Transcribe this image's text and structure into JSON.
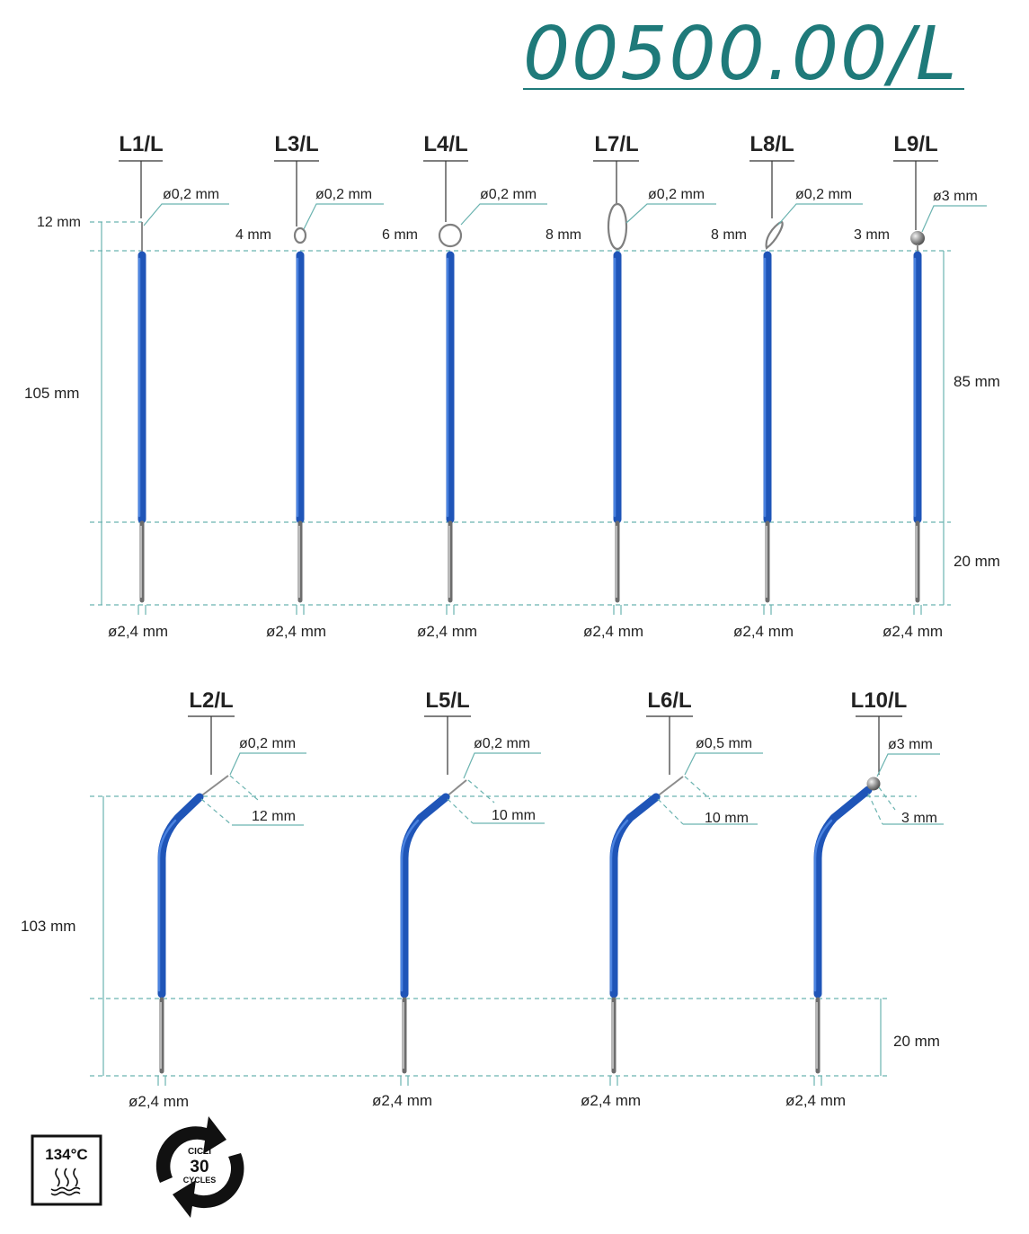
{
  "title": "00500.00/L",
  "colors": {
    "title": "#1f7a7a",
    "sleeve": "#1f55b8",
    "guide": "#6bb3b0",
    "pin": "#6d6d6d"
  },
  "straight": {
    "items": [
      {
        "code": "L1/L",
        "tip_diameter": "ø0,2 mm",
        "tip_length": "12 mm",
        "base_diameter": "ø2,4 mm",
        "tip": "needle"
      },
      {
        "code": "L3/L",
        "tip_diameter": "ø0,2 mm",
        "tip_length": "4 mm",
        "base_diameter": "ø2,4 mm",
        "tip": "loop-small"
      },
      {
        "code": "L4/L",
        "tip_diameter": "ø0,2 mm",
        "tip_length": "6 mm",
        "base_diameter": "ø2,4 mm",
        "tip": "loop-round"
      },
      {
        "code": "L7/L",
        "tip_diameter": "ø0,2 mm",
        "tip_length": "8 mm",
        "base_diameter": "ø2,4 mm",
        "tip": "loop-oval"
      },
      {
        "code": "L8/L",
        "tip_diameter": "ø0,2 mm",
        "tip_length": "8 mm",
        "base_diameter": "ø2,4 mm",
        "tip": "loop-angled"
      },
      {
        "code": "L9/L",
        "tip_diameter": "ø3 mm",
        "tip_length": "3 mm",
        "base_diameter": "ø2,4 mm",
        "tip": "ball"
      }
    ],
    "total_length": "105 mm",
    "sleeve_length": "85 mm",
    "pin_length": "20 mm"
  },
  "angled": {
    "items": [
      {
        "code": "L2/L",
        "tip_diameter": "ø0,2 mm",
        "tip_length": "12 mm",
        "base_diameter": "ø2,4 mm",
        "tip": "needle"
      },
      {
        "code": "L5/L",
        "tip_diameter": "ø0,2 mm",
        "tip_length": "10 mm",
        "base_diameter": "ø2,4 mm",
        "tip": "needle"
      },
      {
        "code": "L6/L",
        "tip_diameter": "ø0,5 mm",
        "tip_length": "10 mm",
        "base_diameter": "ø2,4 mm",
        "tip": "needle"
      },
      {
        "code": "L10/L",
        "tip_diameter": "ø3 mm",
        "tip_length": "3 mm",
        "base_diameter": "ø2,4 mm",
        "tip": "ball"
      }
    ],
    "total_length": "103 mm",
    "pin_length": "20 mm"
  },
  "badges": {
    "temperature": "134°C",
    "cycles_top": "CICLI",
    "cycles_count": "30",
    "cycles_bottom": "CYCLES",
    "steam_icon": "steam-icon",
    "cycle_icon": "circular-arrows-icon"
  }
}
